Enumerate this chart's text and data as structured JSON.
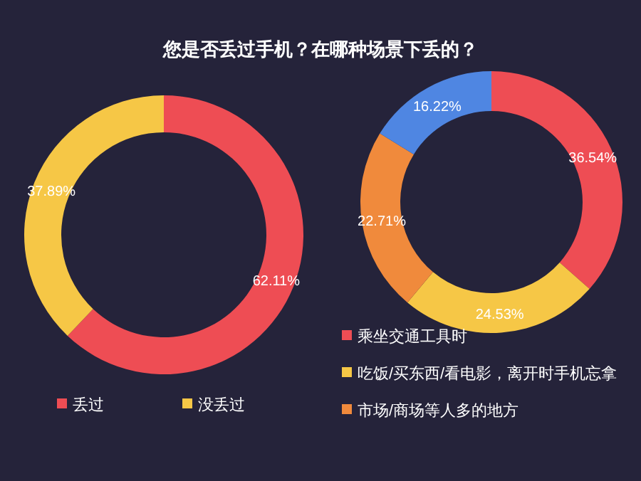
{
  "chart_data": [
    {
      "type": "donut",
      "title": "您是否丢过手机？在哪种场景下丢的？",
      "categories": [
        "丢过",
        "没丢过"
      ],
      "values": [
        62.11,
        37.89
      ],
      "colors": [
        "#ee4d54",
        "#f6c746"
      ],
      "value_labels": [
        "62.11%",
        "37.89%"
      ],
      "legend": "bottom"
    },
    {
      "type": "donut",
      "categories": [
        "乘坐交通工具时",
        "吃饭/买东西/看电影，离开时手机忘拿",
        "市场/商场等人多的地方",
        null
      ],
      "values": [
        36.54,
        24.53,
        22.71,
        16.22
      ],
      "colors": [
        "#ee4d54",
        "#f6c746",
        "#f08a3c",
        "#4f86e2"
      ],
      "value_labels": [
        "36.54%",
        "24.53%",
        "22.71%",
        "16.22%"
      ],
      "legend": "bottom"
    }
  ]
}
